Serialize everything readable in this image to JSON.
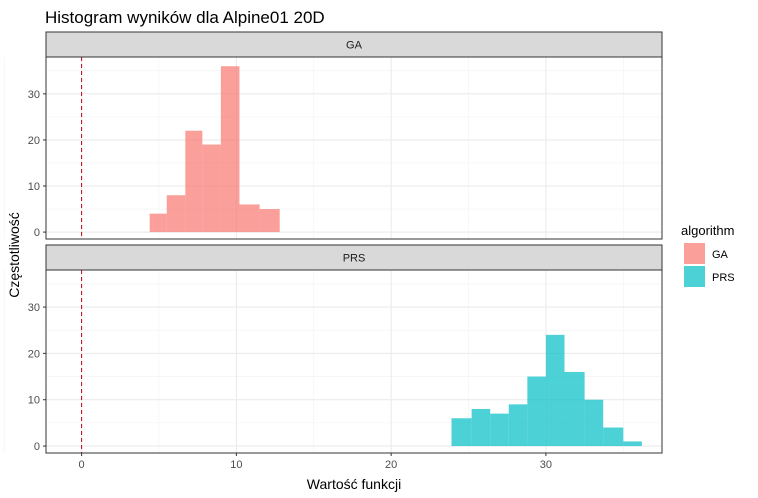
{
  "chart_data": {
    "type": "histogram",
    "title": "Histogram wyników dla Alpine01 20D",
    "xlabel": "Wartość funkcji",
    "ylabel": "Częstotliwość",
    "xlim": [
      -2.3,
      37.5
    ],
    "ylim": [
      -1.5,
      38
    ],
    "x_ticks": [
      0,
      10,
      20,
      30
    ],
    "y_ticks": [
      0,
      10,
      20,
      30
    ],
    "grid": true,
    "reference_line": {
      "x": 0,
      "style": "dashed",
      "color": "#c0001a"
    },
    "legend": {
      "title": "algorithm",
      "position": "right",
      "items": [
        {
          "label": "GA",
          "color": "#f8766d"
        },
        {
          "label": "PRS",
          "color": "#00bfc4"
        }
      ]
    },
    "facets": [
      {
        "label": "GA",
        "color": "#f8766d",
        "bins": [
          {
            "x0": 4.4,
            "x1": 5.5,
            "count": 4
          },
          {
            "x0": 5.5,
            "x1": 6.7,
            "count": 8
          },
          {
            "x0": 6.7,
            "x1": 7.8,
            "count": 22
          },
          {
            "x0": 7.8,
            "x1": 9.0,
            "count": 19
          },
          {
            "x0": 9.0,
            "x1": 10.2,
            "count": 36
          },
          {
            "x0": 10.2,
            "x1": 11.5,
            "count": 6
          },
          {
            "x0": 11.5,
            "x1": 12.8,
            "count": 5
          }
        ]
      },
      {
        "label": "PRS",
        "color": "#00bfc4",
        "bins": [
          {
            "x0": 23.9,
            "x1": 25.2,
            "count": 6
          },
          {
            "x0": 25.2,
            "x1": 26.4,
            "count": 8
          },
          {
            "x0": 26.4,
            "x1": 27.6,
            "count": 7
          },
          {
            "x0": 27.6,
            "x1": 28.8,
            "count": 9
          },
          {
            "x0": 28.8,
            "x1": 30.0,
            "count": 15
          },
          {
            "x0": 30.0,
            "x1": 31.2,
            "count": 24
          },
          {
            "x0": 31.2,
            "x1": 32.5,
            "count": 16
          },
          {
            "x0": 32.5,
            "x1": 33.7,
            "count": 10
          },
          {
            "x0": 33.7,
            "x1": 35.0,
            "count": 4
          },
          {
            "x0": 35.0,
            "x1": 36.2,
            "count": 1
          }
        ]
      }
    ]
  }
}
